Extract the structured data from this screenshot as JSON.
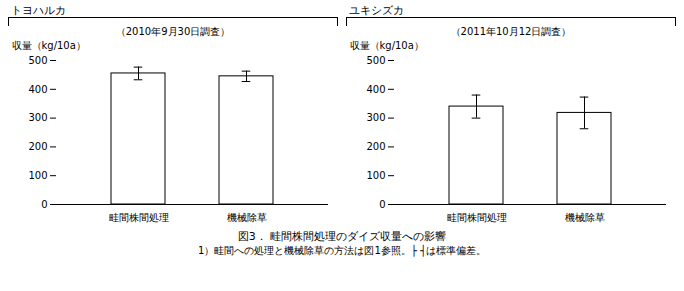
{
  "chart_data": [
    {
      "type": "bar",
      "title": "トヨハルカ",
      "subtitle": "（2010年9月30日調査）",
      "categories": [
        "畦間株間処理",
        "機械除草"
      ],
      "values": [
        455,
        445
      ],
      "errors": [
        22,
        18
      ],
      "ylabel": "収量（kg/10a）",
      "ylim": [
        0,
        500
      ],
      "yticks": [
        0,
        100,
        200,
        300,
        400,
        500
      ],
      "color": "#ffffff",
      "grid": false,
      "legend": false
    },
    {
      "type": "bar",
      "title": "ユキシズカ",
      "subtitle": "（2011年10月12日調査）",
      "categories": [
        "畦間株間処理",
        "機械除草"
      ],
      "values": [
        340,
        318
      ],
      "errors": [
        40,
        55
      ],
      "ylabel": "収量（kg/10a）",
      "ylim": [
        0,
        500
      ],
      "yticks": [
        0,
        100,
        200,
        300,
        400,
        500
      ],
      "color": "#ffffff",
      "grid": false,
      "legend": false
    }
  ],
  "title": "図3． 畦間株間処理のダイズ収量への影響",
  "annotations": [
    "1）畦間への処理と機械除草の方法は図1参照。├ ┤は標準偏差。"
  ]
}
